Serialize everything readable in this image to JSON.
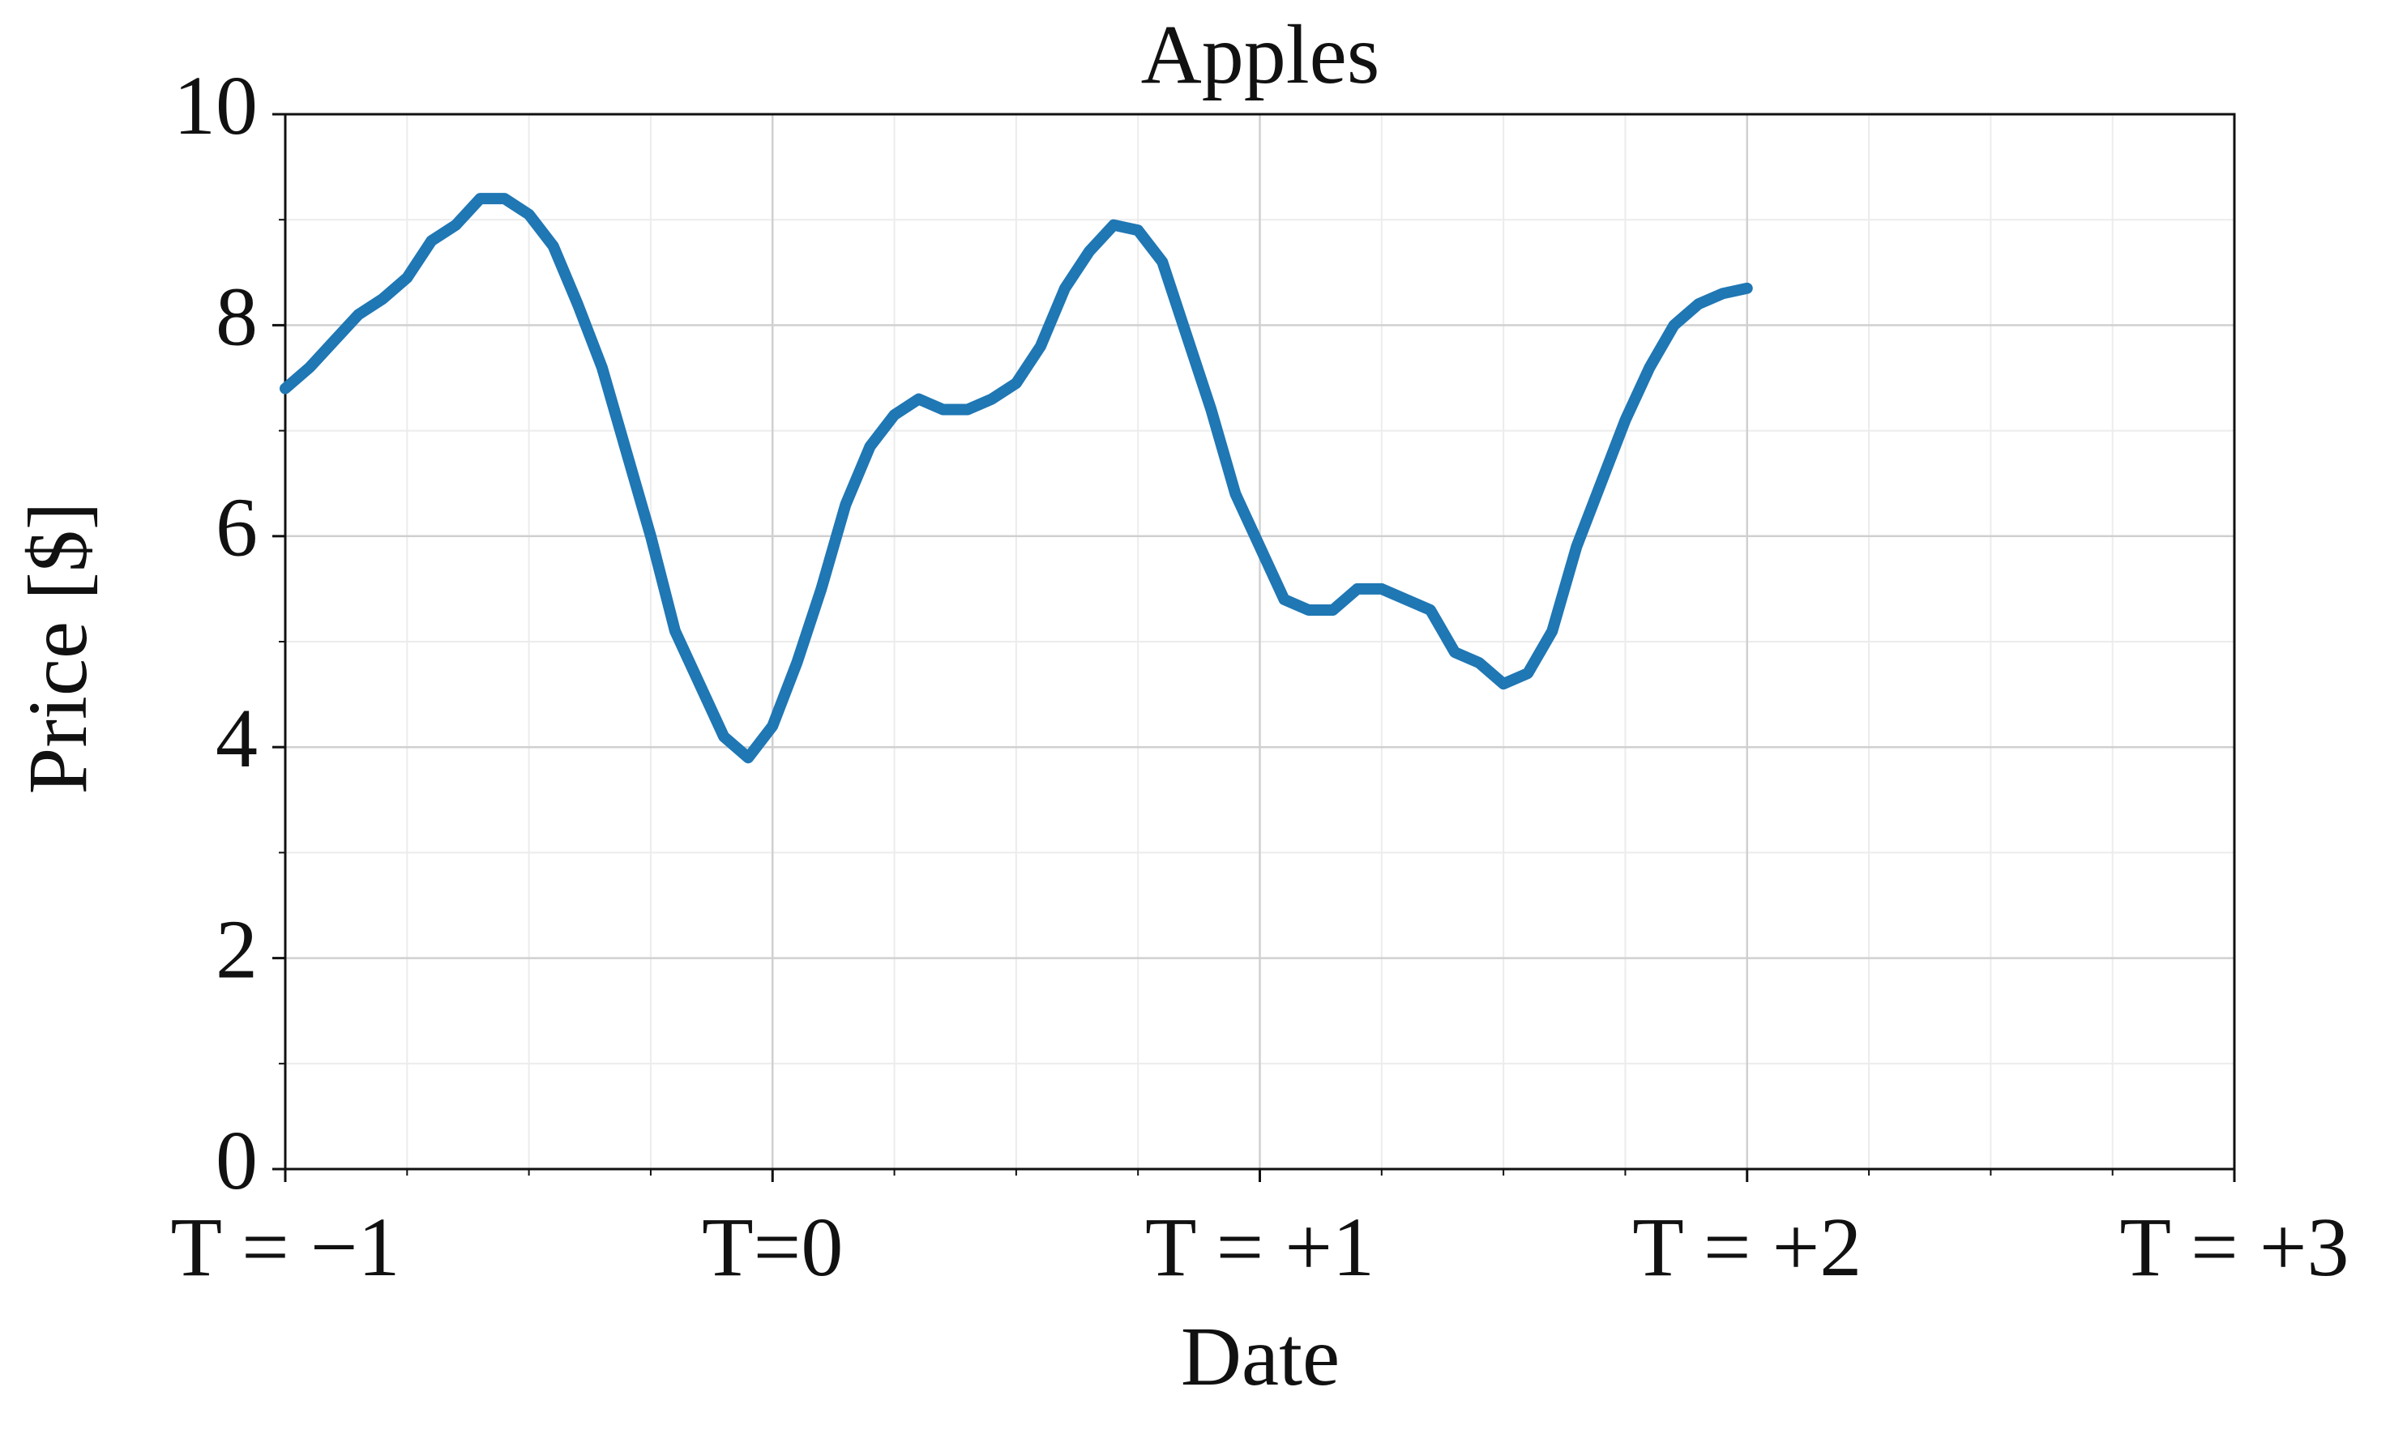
{
  "chart_data": {
    "type": "line",
    "title": "Apples",
    "x_label": "Date",
    "y_label": "Price [$]",
    "x": [
      -1,
      -0.95,
      -0.9,
      -0.85,
      -0.8,
      -0.75,
      -0.7,
      -0.65,
      -0.6,
      -0.55,
      -0.5,
      -0.45,
      -0.4,
      -0.35,
      -0.3,
      -0.25,
      -0.2,
      -0.15,
      -0.1,
      -0.05,
      0,
      0.05,
      0.1,
      0.15,
      0.2,
      0.25,
      0.3,
      0.35,
      0.4,
      0.45,
      0.5,
      0.55,
      0.6,
      0.65,
      0.7,
      0.75,
      0.8,
      0.85,
      0.9,
      0.95,
      1,
      1.05,
      1.1,
      1.15,
      1.2,
      1.25,
      1.3,
      1.35,
      1.4,
      1.45,
      1.5,
      1.55,
      1.6,
      1.65,
      1.7,
      1.75,
      1.8,
      1.85,
      1.9,
      1.95,
      2
    ],
    "series": [
      {
        "name": "Apples",
        "color": "#1f77b4",
        "values": [
          7.4,
          7.6,
          7.85,
          8.1,
          8.25,
          8.45,
          8.8,
          8.95,
          9.2,
          9.2,
          9.05,
          8.75,
          8.2,
          7.6,
          6.8,
          6.0,
          5.1,
          4.6,
          4.1,
          3.9,
          4.2,
          4.8,
          5.5,
          6.3,
          6.85,
          7.15,
          7.3,
          7.2,
          7.2,
          7.3,
          7.45,
          7.8,
          8.35,
          8.7,
          8.95,
          8.9,
          8.6,
          7.9,
          7.2,
          6.4,
          5.9,
          5.4,
          5.3,
          5.3,
          5.5,
          5.5,
          5.4,
          5.3,
          4.9,
          4.8,
          4.6,
          4.7,
          5.1,
          5.9,
          6.5,
          7.1,
          7.6,
          8.0,
          8.2,
          8.3,
          8.35
        ]
      }
    ],
    "xlim": [
      -1,
      3
    ],
    "xticks": [
      {
        "value": -1,
        "label": "T = −1"
      },
      {
        "value": 0,
        "label": "T=0"
      },
      {
        "value": 1,
        "label": "T = +1"
      },
      {
        "value": 2,
        "label": "T = +2"
      },
      {
        "value": 3,
        "label": "T = +3"
      }
    ],
    "xminorticks": [
      -0.75,
      -0.5,
      -0.25,
      0.25,
      0.5,
      0.75,
      1.25,
      1.5,
      1.75,
      2.25,
      2.5,
      2.75
    ],
    "ylim": [
      0,
      10
    ],
    "yticks": [
      0,
      2,
      4,
      6,
      8,
      10
    ],
    "yminorticks": [
      1,
      3,
      5,
      7,
      9
    ],
    "grid": true
  }
}
